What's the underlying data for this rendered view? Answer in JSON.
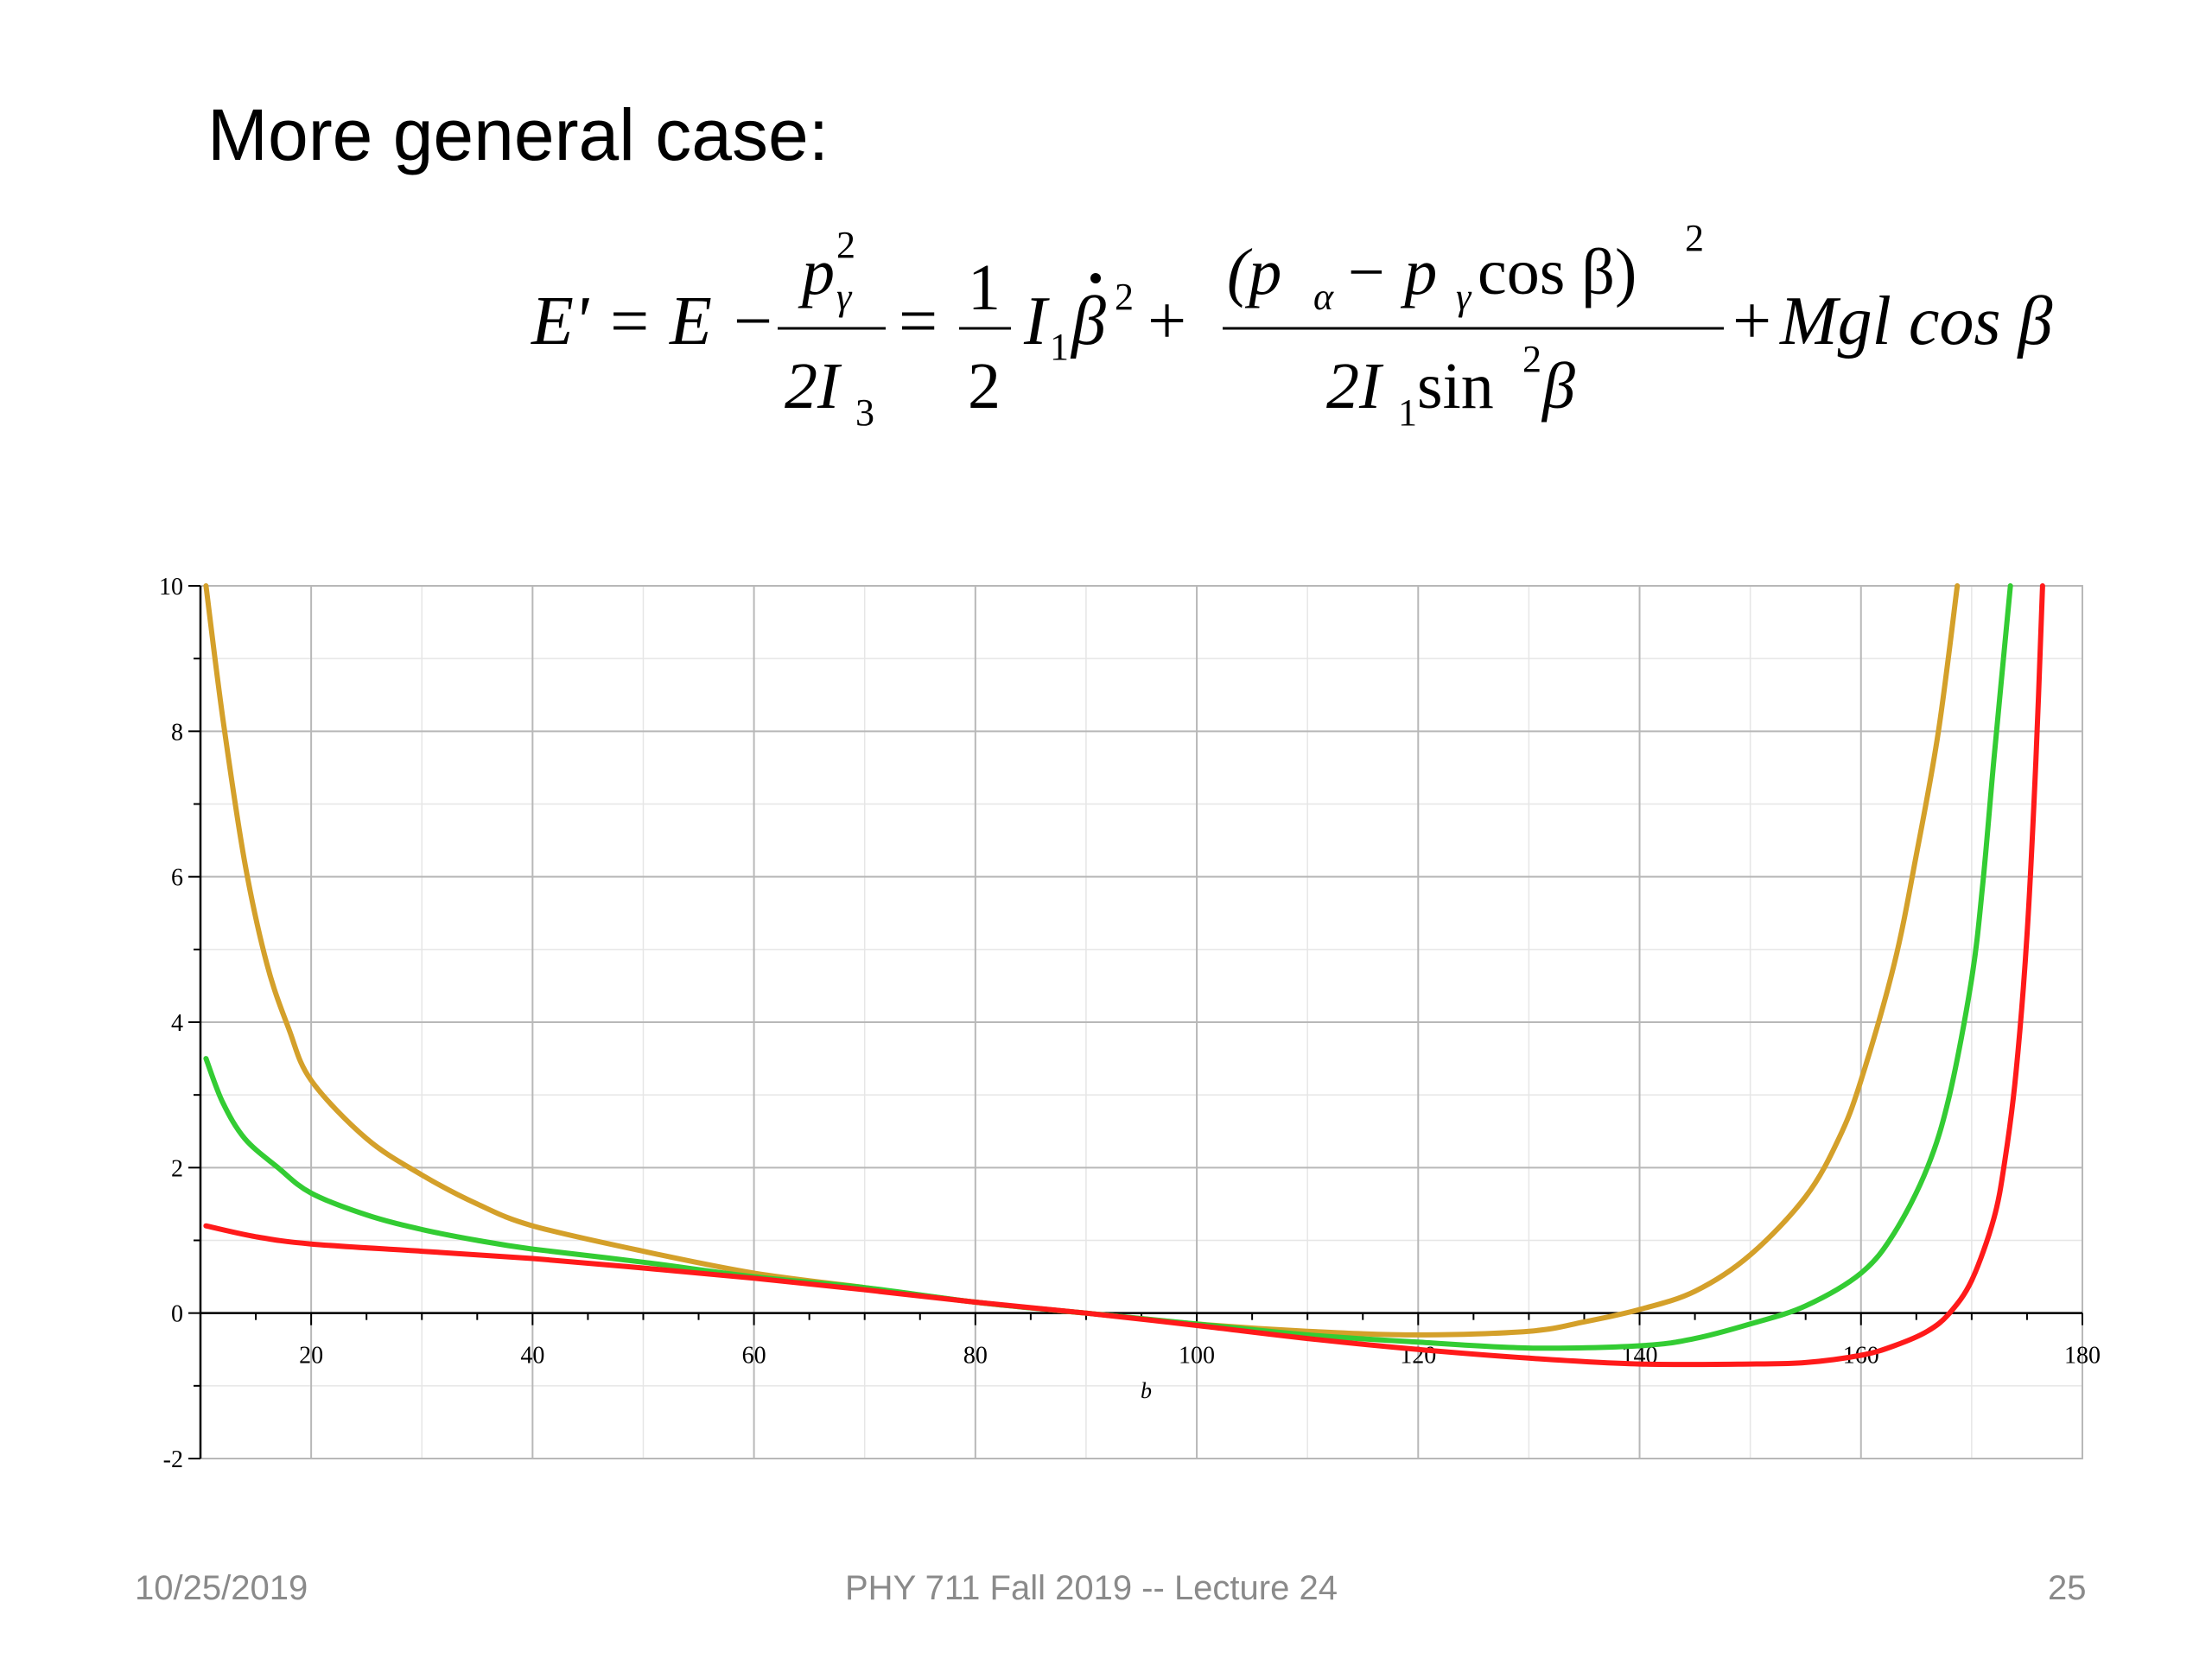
{
  "slide": {
    "heading": "More general case:",
    "footer_date": "10/25/2019",
    "footer_center": "PHY 711  Fall 2019 -- Lecture 24",
    "footer_page": "25"
  },
  "equation": {
    "lhs": "E' = E −",
    "frac1_num": "p",
    "frac1_num_sup": "2",
    "frac1_num_sub": "γ",
    "frac1_den": "2I",
    "frac1_den_sub": "3",
    "eq": "=",
    "half_num": "1",
    "half_den": "2",
    "term1": "I",
    "term1_sub": "1",
    "term1_beta": "β",
    "term1_sup": "2",
    "plus1": "+",
    "frac2_num": "(p",
    "frac2_num_sub_a": "α",
    "frac2_num_mid": " − p",
    "frac2_num_sub_g": "γ",
    "frac2_num_end": " cos β)",
    "frac2_num_sup": "2",
    "frac2_den": "2I",
    "frac2_den_sub": "1",
    "frac2_den_end": " sin",
    "frac2_den_sup": "2",
    "frac2_den_beta": " β",
    "plus2": "+",
    "tail": "Mgl cos β"
  },
  "chart_data": {
    "type": "line",
    "title": "",
    "xlabel": "b",
    "ylabel": "",
    "xlim": [
      10,
      180
    ],
    "ylim": [
      -2,
      10
    ],
    "x_ticks": [
      20,
      40,
      60,
      80,
      100,
      120,
      140,
      160,
      180
    ],
    "y_ticks": [
      -2,
      0,
      2,
      4,
      6,
      8,
      10
    ],
    "grid": true,
    "legend": "none",
    "series": [
      {
        "color": "#d4a02a",
        "x": [
          10.5,
          12,
          14,
          16,
          18,
          20,
          25,
          30,
          35,
          40,
          50,
          60,
          70,
          80,
          90,
          100,
          110,
          120,
          130,
          135,
          140,
          145,
          150,
          155,
          158,
          160,
          163,
          165,
          167,
          168.7
        ],
        "y": [
          10,
          8.2,
          6.2,
          4.8,
          3.9,
          3.2,
          2.4,
          1.9,
          1.5,
          1.2,
          0.85,
          0.55,
          0.35,
          0.15,
          0.0,
          -0.15,
          -0.25,
          -0.3,
          -0.25,
          -0.12,
          0.05,
          0.3,
          0.8,
          1.6,
          2.4,
          3.2,
          4.8,
          6.3,
          8.0,
          10.0
        ]
      },
      {
        "color": "#33cc33",
        "x": [
          10.5,
          12,
          14,
          17,
          20,
          25,
          30,
          35,
          40,
          50,
          60,
          70,
          80,
          90,
          100,
          110,
          120,
          130,
          140,
          145,
          150,
          155,
          160,
          163,
          166,
          168,
          170,
          171,
          172,
          173.5
        ],
        "y": [
          3.5,
          2.9,
          2.4,
          2.0,
          1.65,
          1.35,
          1.15,
          1.0,
          0.88,
          0.7,
          0.5,
          0.35,
          0.15,
          0.0,
          -0.15,
          -0.3,
          -0.4,
          -0.48,
          -0.45,
          -0.35,
          -0.15,
          0.1,
          0.55,
          1.1,
          2.0,
          3.0,
          4.6,
          5.9,
          7.6,
          10.0
        ]
      },
      {
        "color": "#ff1a1a",
        "x": [
          10.5,
          15,
          20,
          30,
          40,
          50,
          60,
          70,
          80,
          90,
          100,
          110,
          120,
          130,
          140,
          150,
          155,
          160,
          163,
          166,
          168,
          170,
          172,
          173,
          174,
          175,
          175.8,
          176.4
        ],
        "y": [
          1.2,
          1.05,
          0.95,
          0.85,
          0.75,
          0.62,
          0.48,
          0.32,
          0.15,
          0.0,
          -0.17,
          -0.35,
          -0.5,
          -0.62,
          -0.7,
          -0.7,
          -0.68,
          -0.58,
          -0.45,
          -0.25,
          0.0,
          0.45,
          1.3,
          2.1,
          3.3,
          5.2,
          7.6,
          10.0
        ]
      }
    ]
  }
}
